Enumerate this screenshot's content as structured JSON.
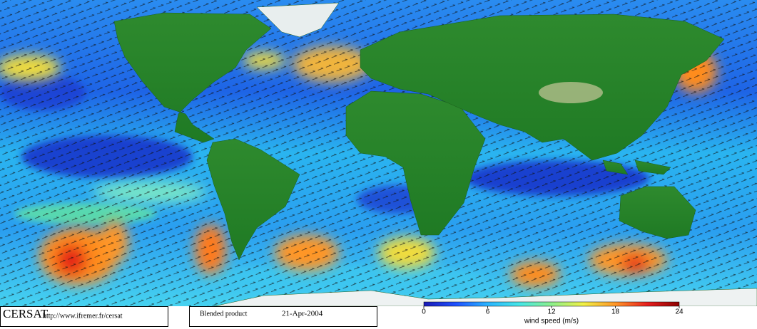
{
  "footer": {
    "logo": "CERSAT",
    "url": "http://www.ifremer.fr/cersat",
    "product": "Blended product",
    "date": "21-Apr-2004"
  },
  "colorbar": {
    "label": "wind speed (m/s)",
    "lim": [
      0,
      24
    ],
    "ticks": [
      0,
      6,
      12,
      18,
      24
    ],
    "colors": [
      "#1a1ab4",
      "#1e50ff",
      "#2ab4ff",
      "#46e6e6",
      "#8cf08c",
      "#f0f046",
      "#ff9628",
      "#e61e1e",
      "#8c0000"
    ]
  }
}
